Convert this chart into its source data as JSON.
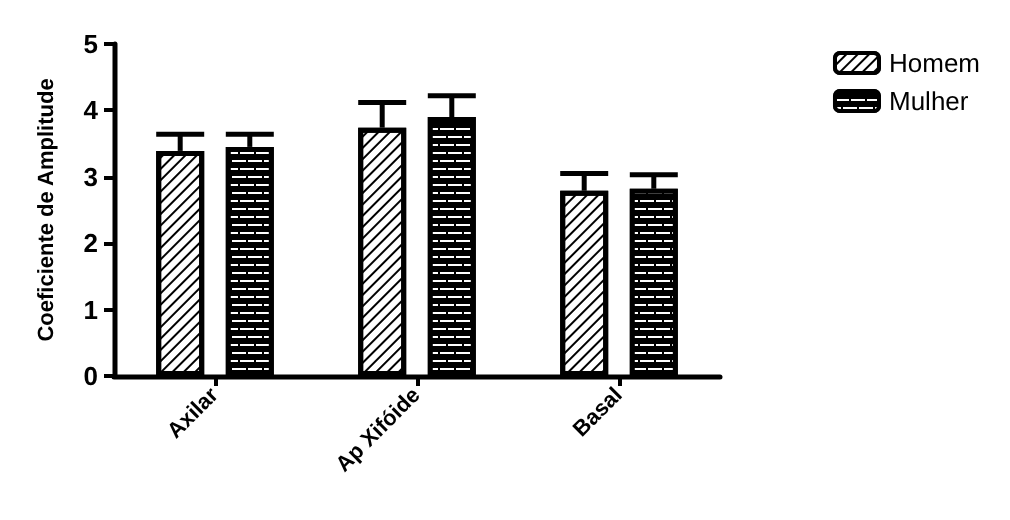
{
  "chart_data": {
    "type": "bar",
    "ylabel": "Coeficiente de Amplitude",
    "categories": [
      "Axilar",
      "Ap Xifóide",
      "Basal"
    ],
    "series": [
      {
        "name": "Homem",
        "color": "#ffffff",
        "values": [
          3.39,
          3.74,
          2.79
        ],
        "errors": [
          [
            3.39,
            3.64
          ],
          [
            3.74,
            4.12
          ],
          [
            2.79,
            3.05
          ]
        ]
      },
      {
        "name": "Mulher",
        "color": "#000000",
        "values": [
          3.45,
          3.9,
          2.82
        ],
        "errors": [
          [
            3.45,
            3.64
          ],
          [
            3.9,
            4.22
          ],
          [
            2.82,
            3.03
          ]
        ]
      }
    ],
    "ylim": [
      0,
      5
    ],
    "yticks": [
      0,
      1,
      2,
      3,
      4,
      5
    ],
    "grid": false,
    "legend": "right"
  }
}
